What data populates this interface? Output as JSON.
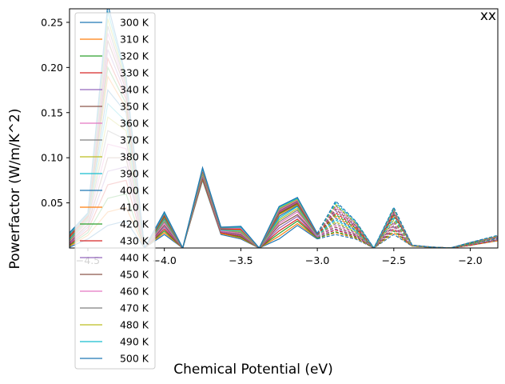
{
  "chart_data": {
    "type": "line",
    "title": "",
    "corner_label": "xx",
    "xlabel": "Chemical Potential (eV)",
    "ylabel": "Powerfactor (W/m/K^2)",
    "xlim": [
      -4.62,
      -1.82
    ],
    "ylim": [
      0.0,
      0.265
    ],
    "xticks": [
      -4.5,
      -4.0,
      -3.5,
      -3.0,
      -2.5,
      -2.0
    ],
    "xtick_labels": [
      "−4.5",
      "−4.0",
      "−3.5",
      "−3.0",
      "−2.5",
      "−2.0"
    ],
    "yticks": [
      0.05,
      0.1,
      0.15,
      0.2,
      0.25
    ],
    "ytick_labels": [
      "0.05",
      "0.10",
      "0.15",
      "0.20",
      "0.25"
    ],
    "grid": false,
    "legend_position": "upper-left",
    "x": [
      -4.62,
      -4.5,
      -4.37,
      -4.25,
      -4.13,
      -4.0,
      -3.88,
      -3.75,
      -3.63,
      -3.5,
      -3.38,
      -3.25,
      -3.13,
      -3.0,
      -2.88,
      -2.75,
      -2.63,
      -2.5,
      -2.38,
      -2.25,
      -2.13,
      -2.0,
      -1.82
    ],
    "solid_through_x": -3.0,
    "series": [
      {
        "name": "300 K",
        "color": "#1f77b4",
        "values": [
          0.001,
          0.01,
          0.025,
          0.03,
          0.0,
          0.015,
          0.0,
          0.075,
          0.015,
          0.01,
          0.0,
          0.01,
          0.025,
          0.01,
          0.015,
          0.01,
          0.0,
          0.015,
          0.002,
          0.001,
          0.0,
          0.003,
          0.008
        ]
      },
      {
        "name": "310 K",
        "color": "#ff7f0e",
        "values": [
          0.002,
          0.014,
          0.04,
          0.045,
          0.0,
          0.017,
          0.0,
          0.076,
          0.016,
          0.011,
          0.0,
          0.013,
          0.027,
          0.011,
          0.017,
          0.011,
          0.0,
          0.017,
          0.002,
          0.001,
          0.0,
          0.003,
          0.008
        ]
      },
      {
        "name": "320 K",
        "color": "#2ca02c",
        "values": [
          0.003,
          0.017,
          0.055,
          0.06,
          0.0,
          0.019,
          0.0,
          0.077,
          0.017,
          0.012,
          0.0,
          0.016,
          0.03,
          0.011,
          0.018,
          0.012,
          0.0,
          0.019,
          0.002,
          0.001,
          0.0,
          0.003,
          0.009
        ]
      },
      {
        "name": "330 K",
        "color": "#d62728",
        "values": [
          0.004,
          0.02,
          0.07,
          0.075,
          0.0,
          0.021,
          0.0,
          0.078,
          0.017,
          0.013,
          0.0,
          0.019,
          0.032,
          0.012,
          0.02,
          0.013,
          0.0,
          0.021,
          0.002,
          0.001,
          0.0,
          0.003,
          0.009
        ]
      },
      {
        "name": "340 K",
        "color": "#9467bd",
        "values": [
          0.005,
          0.023,
          0.085,
          0.09,
          0.0,
          0.023,
          0.0,
          0.079,
          0.018,
          0.014,
          0.0,
          0.022,
          0.035,
          0.012,
          0.021,
          0.014,
          0.0,
          0.023,
          0.002,
          0.001,
          0.0,
          0.004,
          0.009
        ]
      },
      {
        "name": "350 K",
        "color": "#8c564b",
        "values": [
          0.006,
          0.026,
          0.1,
          0.1,
          0.0,
          0.025,
          0.0,
          0.08,
          0.019,
          0.015,
          0.0,
          0.025,
          0.037,
          0.013,
          0.023,
          0.015,
          0.0,
          0.025,
          0.002,
          0.001,
          0.0,
          0.004,
          0.01
        ]
      },
      {
        "name": "360 K",
        "color": "#e377c2",
        "values": [
          0.007,
          0.029,
          0.115,
          0.11,
          0.0,
          0.027,
          0.0,
          0.081,
          0.019,
          0.016,
          0.0,
          0.027,
          0.04,
          0.013,
          0.025,
          0.016,
          0.0,
          0.027,
          0.002,
          0.001,
          0.0,
          0.004,
          0.01
        ]
      },
      {
        "name": "370 K",
        "color": "#7f7f7f",
        "values": [
          0.008,
          0.031,
          0.13,
          0.12,
          0.0,
          0.029,
          0.0,
          0.082,
          0.02,
          0.017,
          0.0,
          0.029,
          0.042,
          0.014,
          0.027,
          0.017,
          0.0,
          0.029,
          0.002,
          0.001,
          0.0,
          0.004,
          0.01
        ]
      },
      {
        "name": "380 K",
        "color": "#bcbd22",
        "values": [
          0.009,
          0.032,
          0.145,
          0.13,
          0.0,
          0.031,
          0.0,
          0.083,
          0.02,
          0.018,
          0.0,
          0.031,
          0.044,
          0.014,
          0.029,
          0.018,
          0.0,
          0.031,
          0.002,
          0.001,
          0.0,
          0.005,
          0.011
        ]
      },
      {
        "name": "390 K",
        "color": "#17becf",
        "values": [
          0.01,
          0.033,
          0.16,
          0.14,
          0.0,
          0.032,
          0.0,
          0.084,
          0.02,
          0.019,
          0.0,
          0.033,
          0.046,
          0.014,
          0.031,
          0.019,
          0.0,
          0.033,
          0.003,
          0.001,
          0.0,
          0.005,
          0.011
        ]
      },
      {
        "name": "400 K",
        "color": "#1f77b4",
        "values": [
          0.011,
          0.034,
          0.175,
          0.15,
          0.0,
          0.033,
          0.0,
          0.085,
          0.021,
          0.02,
          0.0,
          0.035,
          0.047,
          0.015,
          0.033,
          0.02,
          0.0,
          0.035,
          0.003,
          0.001,
          0.0,
          0.005,
          0.011
        ]
      },
      {
        "name": "410 K",
        "color": "#ff7f0e",
        "values": [
          0.012,
          0.034,
          0.19,
          0.155,
          0.0,
          0.034,
          0.0,
          0.085,
          0.021,
          0.02,
          0.0,
          0.037,
          0.048,
          0.015,
          0.035,
          0.021,
          0.0,
          0.036,
          0.003,
          0.001,
          0.0,
          0.005,
          0.012
        ]
      },
      {
        "name": "420 K",
        "color": "#2ca02c",
        "values": [
          0.013,
          0.035,
          0.2,
          0.16,
          0.0,
          0.035,
          0.0,
          0.086,
          0.021,
          0.021,
          0.0,
          0.038,
          0.049,
          0.015,
          0.037,
          0.022,
          0.0,
          0.037,
          0.003,
          0.001,
          0.0,
          0.005,
          0.012
        ]
      },
      {
        "name": "430 K",
        "color": "#d62728",
        "values": [
          0.013,
          0.035,
          0.21,
          0.165,
          0.0,
          0.036,
          0.0,
          0.086,
          0.021,
          0.021,
          0.0,
          0.039,
          0.05,
          0.015,
          0.039,
          0.023,
          0.0,
          0.038,
          0.003,
          0.001,
          0.0,
          0.006,
          0.012
        ]
      },
      {
        "name": "440 K",
        "color": "#9467bd",
        "values": [
          0.014,
          0.036,
          0.22,
          0.17,
          0.0,
          0.037,
          0.0,
          0.087,
          0.022,
          0.022,
          0.0,
          0.04,
          0.051,
          0.016,
          0.041,
          0.024,
          0.0,
          0.039,
          0.003,
          0.001,
          0.0,
          0.006,
          0.012
        ]
      },
      {
        "name": "450 K",
        "color": "#8c564b",
        "values": [
          0.014,
          0.036,
          0.23,
          0.175,
          0.0,
          0.037,
          0.0,
          0.087,
          0.022,
          0.022,
          0.0,
          0.041,
          0.052,
          0.016,
          0.043,
          0.025,
          0.0,
          0.04,
          0.003,
          0.001,
          0.0,
          0.006,
          0.013
        ]
      },
      {
        "name": "460 K",
        "color": "#e377c2",
        "values": [
          0.015,
          0.037,
          0.238,
          0.178,
          0.0,
          0.038,
          0.0,
          0.087,
          0.022,
          0.022,
          0.0,
          0.042,
          0.053,
          0.016,
          0.045,
          0.026,
          0.0,
          0.041,
          0.003,
          0.001,
          0.0,
          0.006,
          0.013
        ]
      },
      {
        "name": "470 K",
        "color": "#7f7f7f",
        "values": [
          0.015,
          0.037,
          0.246,
          0.181,
          0.0,
          0.038,
          0.0,
          0.088,
          0.022,
          0.023,
          0.0,
          0.043,
          0.054,
          0.016,
          0.047,
          0.027,
          0.0,
          0.042,
          0.003,
          0.001,
          0.0,
          0.006,
          0.013
        ]
      },
      {
        "name": "480 K",
        "color": "#bcbd22",
        "values": [
          0.016,
          0.038,
          0.254,
          0.184,
          0.0,
          0.039,
          0.0,
          0.088,
          0.023,
          0.023,
          0.0,
          0.044,
          0.054,
          0.016,
          0.048,
          0.028,
          0.0,
          0.043,
          0.003,
          0.001,
          0.0,
          0.006,
          0.013
        ]
      },
      {
        "name": "490 K",
        "color": "#17becf",
        "values": [
          0.016,
          0.038,
          0.262,
          0.187,
          0.0,
          0.039,
          0.0,
          0.088,
          0.023,
          0.023,
          0.0,
          0.045,
          0.055,
          0.016,
          0.05,
          0.029,
          0.0,
          0.044,
          0.003,
          0.001,
          0.0,
          0.006,
          0.014
        ]
      },
      {
        "name": "500 K",
        "color": "#1f77b4",
        "values": [
          0.017,
          0.039,
          0.27,
          0.19,
          0.0,
          0.04,
          0.0,
          0.089,
          0.023,
          0.024,
          0.0,
          0.046,
          0.056,
          0.016,
          0.052,
          0.03,
          0.0,
          0.045,
          0.003,
          0.001,
          0.0,
          0.006,
          0.014
        ]
      }
    ]
  }
}
